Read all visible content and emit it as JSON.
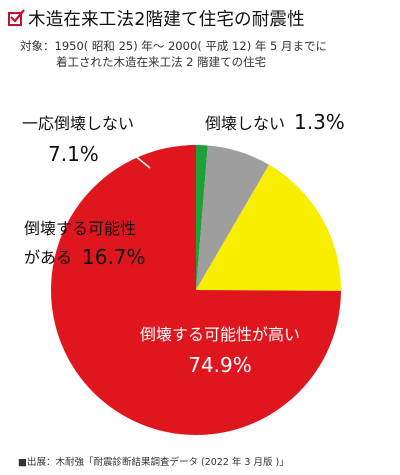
{
  "header": {
    "title": "木造在来工法2階建て住宅の耐震性",
    "check_icon": "check-box-icon",
    "accent_color": "#c8102e"
  },
  "subtitle": {
    "line1": "対象：1950( 昭和 25) 年～ 2000( 平成 12) 年 5 月までに",
    "line2": "着工された木造在来工法 2 階建ての住宅"
  },
  "chart_data": {
    "type": "pie",
    "title": "木造在来工法2階建て住宅の耐震性",
    "slices": [
      {
        "label": "倒壊しない",
        "value": 1.3,
        "value_text": "1.3%",
        "color": "#1fa13a"
      },
      {
        "label": "一応倒壊しない",
        "value": 7.1,
        "value_text": "7.1%",
        "color": "#9e9e9e"
      },
      {
        "label": "倒壊する可能性がある",
        "label_line1": "倒壊する可能性",
        "label_line2": "がある",
        "value": 16.7,
        "value_text": "16.7%",
        "color": "#f7ee00"
      },
      {
        "label": "倒壊する可能性が高い",
        "value": 74.9,
        "value_text": "74.9%",
        "color": "#e0161f"
      }
    ],
    "start": "top",
    "direction": "clockwise"
  },
  "source": {
    "text": "■出展：木耐強「耐震診断結果調査データ (2022 年 3 月版 )」"
  }
}
